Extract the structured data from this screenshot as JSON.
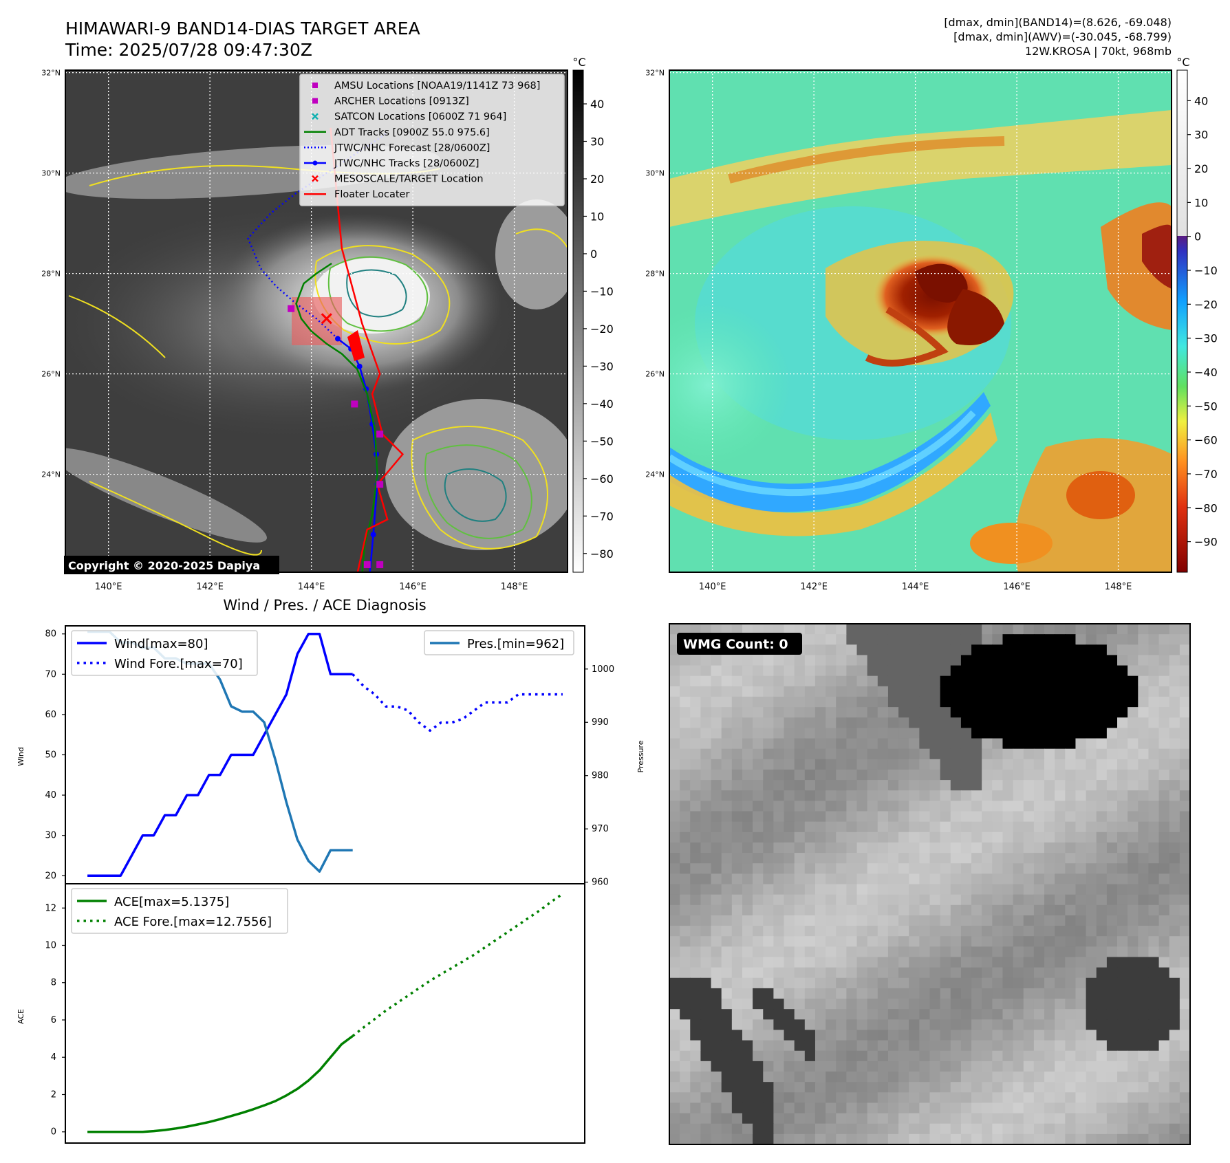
{
  "header": {
    "title_line1": "HIMAWARI-9 BAND14-DIAS TARGET AREA",
    "title_line2": "Time: 2025/07/28 09:47:30Z",
    "info_line1": "[dmax, dmin](BAND14)=(8.626, -69.048)",
    "info_line2": "[dmax, dmin](AWV)=(-30.045, -68.799)",
    "info_line3": "12W.KROSA | 70kt, 968mb"
  },
  "map_axes": {
    "lat_labels": [
      "32°N",
      "30°N",
      "28°N",
      "26°N",
      "24°N"
    ],
    "lat_values": [
      32,
      30,
      28,
      26,
      24
    ],
    "lon_labels": [
      "140°E",
      "142°E",
      "144°E",
      "146°E",
      "148°E"
    ],
    "lon_values": [
      140,
      142,
      144,
      146,
      148
    ],
    "lon_range": [
      139.15,
      149.05
    ],
    "lat_range": [
      22.05,
      32.05
    ]
  },
  "ir_panel": {
    "copyright": "Copyright © 2020-2025 Dapiya",
    "colorbar_unit": "°C",
    "colorbar_ticks": [
      "40",
      "30",
      "20",
      "10",
      "0",
      "−10",
      "−20",
      "−30",
      "−40",
      "−50",
      "−60",
      "−70",
      "−80"
    ],
    "colorbar_values": [
      40,
      30,
      20,
      10,
      0,
      -10,
      -20,
      -30,
      -40,
      -50,
      -60,
      -70,
      -80
    ],
    "colorbar_range": [
      -85,
      49
    ]
  },
  "legend": [
    {
      "label": "AMSU Locations [NOAA19/1141Z 73 968]",
      "marker": "square",
      "color": "#c000c0"
    },
    {
      "label": "ARCHER Locations [0913Z]",
      "marker": "square",
      "color": "#c000c0"
    },
    {
      "label": "SATCON Locations [0600Z 71 964]",
      "marker": "x",
      "color": "#10b0b0"
    },
    {
      "label": "ADT Tracks [0900Z 55.0 975.6]",
      "marker": "line",
      "color": "#008000"
    },
    {
      "label": "JTWC/NHC Forecast [28/0600Z]",
      "marker": "dotted",
      "color": "#0000ff"
    },
    {
      "label": "JTWC/NHC Tracks [28/0600Z]",
      "marker": "line-dot",
      "color": "#0000ff"
    },
    {
      "label": "MESOSCALE/TARGET Location",
      "marker": "x",
      "color": "#ff0000"
    },
    {
      "label": "Floater Locater",
      "marker": "line",
      "color": "#ff0000"
    }
  ],
  "awv_panel": {
    "colorbar_unit": "°C",
    "colorbar_ticks": [
      "40",
      "30",
      "20",
      "10",
      "0",
      "−10",
      "−20",
      "−30",
      "−40",
      "−50",
      "−60",
      "−70",
      "−80",
      "−90"
    ],
    "colorbar_values": [
      40,
      30,
      20,
      10,
      0,
      -10,
      -20,
      -30,
      -40,
      -50,
      -60,
      -70,
      -80,
      -90
    ],
    "colorbar_range": [
      -99,
      49
    ]
  },
  "wmg_panel": {
    "label": "WMG Count: 0"
  },
  "diagnosis": {
    "title": "Wind / Pres. / ACE Diagnosis",
    "wind_ylabel": "Wind",
    "pres_ylabel": "Pressure",
    "ace_ylabel": "ACE",
    "legend_wind": "Wind[max=80]",
    "legend_wind_fore": "Wind Fore.[max=70]",
    "legend_pres": "Pres.[min=962]",
    "legend_ace": "ACE[max=5.1375]",
    "legend_ace_fore": "ACE Fore.[max=12.7556]",
    "wind_ticks": [
      "80",
      "70",
      "60",
      "50",
      "40",
      "30",
      "20"
    ],
    "pres_ticks": [
      "1000",
      "990",
      "980",
      "970",
      "960"
    ],
    "ace_ticks": [
      "12",
      "10",
      "8",
      "6",
      "4",
      "2",
      "0"
    ]
  },
  "colors": {
    "wind": "#0000ff",
    "pressure": "#1f77b4",
    "ace": "#008000",
    "contour_yellow": "#f0e020",
    "contour_green": "#60c040",
    "contour_teal": "#208080"
  },
  "chart_data": [
    {
      "type": "line",
      "title": "Wind / Pres. / ACE Diagnosis",
      "ylabel": "Wind",
      "ylim": [
        18,
        82
      ],
      "xlim": [
        -2,
        45
      ],
      "series": [
        {
          "name": "Wind[max=80]",
          "style": "solid",
          "color": "#0000ff",
          "x": [
            0,
            1,
            2,
            3,
            4,
            5,
            6,
            7,
            8,
            9,
            10,
            11,
            12,
            13,
            14,
            15,
            16,
            17,
            18,
            19,
            20,
            21,
            22,
            23,
            24
          ],
          "y": [
            20,
            20,
            20,
            20,
            25,
            30,
            30,
            35,
            35,
            40,
            40,
            45,
            45,
            50,
            50,
            50,
            55,
            60,
            65,
            75,
            80,
            80,
            70,
            70,
            70
          ]
        },
        {
          "name": "Wind Fore.[max=70]",
          "style": "dotted",
          "color": "#0000ff",
          "x": [
            24,
            25,
            26,
            27,
            28,
            29,
            30,
            31,
            32,
            33,
            34,
            35,
            36,
            37,
            38,
            39,
            40,
            41,
            42,
            43
          ],
          "y": [
            70,
            67,
            65,
            62,
            62,
            61,
            58,
            56,
            58,
            58,
            59,
            61,
            63,
            63,
            63,
            65,
            65,
            65,
            65,
            65
          ]
        },
        {
          "name": "Pres.[min=962]",
          "style": "solid",
          "color": "#1f77b4",
          "axis": "right",
          "ylim": [
            959.7,
            1008.1
          ],
          "x": [
            0,
            1,
            2,
            3,
            4,
            5,
            6,
            7,
            8,
            9,
            10,
            11,
            12,
            13,
            14,
            15,
            16,
            17,
            18,
            19,
            20,
            21,
            22,
            23,
            24
          ],
          "y": [
            1007,
            1007,
            1007,
            1005,
            1005,
            1004,
            1004,
            1002,
            1002,
            1001,
            1001,
            1001,
            998,
            993,
            992,
            992,
            990,
            983,
            975,
            968,
            964,
            962,
            966,
            966,
            966
          ]
        }
      ]
    },
    {
      "type": "line",
      "ylabel": "ACE",
      "ylim": [
        -0.6,
        13.3
      ],
      "xlim": [
        -2,
        45
      ],
      "series": [
        {
          "name": "ACE[max=5.1375]",
          "style": "solid",
          "color": "#008000",
          "x": [
            0,
            1,
            2,
            3,
            4,
            5,
            6,
            7,
            8,
            9,
            10,
            11,
            12,
            13,
            14,
            15,
            16,
            17,
            18,
            19,
            20,
            21,
            22,
            23,
            24
          ],
          "y": [
            0,
            0,
            0,
            0,
            0,
            0,
            0.04,
            0.1,
            0.18,
            0.28,
            0.4,
            0.53,
            0.68,
            0.85,
            1.02,
            1.21,
            1.42,
            1.65,
            1.95,
            2.3,
            2.75,
            3.3,
            4.0,
            4.7,
            5.1375
          ]
        },
        {
          "name": "ACE Fore.[max=12.7556]",
          "style": "dotted",
          "color": "#008000",
          "x": [
            24,
            25,
            26,
            27,
            28,
            29,
            30,
            31,
            32,
            33,
            34,
            35,
            36,
            37,
            38,
            39,
            40,
            41,
            42,
            43
          ],
          "y": [
            5.1375,
            5.6,
            6.05,
            6.5,
            6.9,
            7.3,
            7.7,
            8.1,
            8.45,
            8.8,
            9.15,
            9.5,
            9.9,
            10.3,
            10.7,
            11.1,
            11.5,
            11.9,
            12.35,
            12.7556
          ]
        }
      ]
    },
    {
      "type": "scatter",
      "title": "HIMAWARI-9 BAND14-DIAS TARGET AREA",
      "xlabel": "",
      "ylabel": "",
      "xlim": [
        139.15,
        149.05
      ],
      "ylim": [
        22.05,
        32.05
      ],
      "series": [
        {
          "name": "JTWC/NHC Tracks [28/0600Z]",
          "style": "line-dot",
          "color": "#0000ff",
          "points": [
            [
              145.15,
              22.0
            ],
            [
              145.22,
              22.8
            ],
            [
              145.3,
              23.8
            ],
            [
              145.28,
              24.4
            ],
            [
              145.2,
              25.0
            ],
            [
              145.08,
              25.7
            ],
            [
              144.95,
              26.15
            ],
            [
              144.78,
              26.5
            ],
            [
              144.52,
              26.7
            ]
          ]
        },
        {
          "name": "JTWC/NHC Forecast [28/0600Z]",
          "style": "dotted",
          "color": "#0000ff",
          "points": [
            [
              144.52,
              26.7
            ],
            [
              144.1,
              27.1
            ],
            [
              143.7,
              27.4
            ],
            [
              143.3,
              27.75
            ],
            [
              143.0,
              28.1
            ],
            [
              142.75,
              28.7
            ],
            [
              143.2,
              29.2
            ],
            [
              143.7,
              29.6
            ],
            [
              144.6,
              30.2
            ],
            [
              145.5,
              30.8
            ]
          ]
        },
        {
          "name": "ADT Tracks [0900Z 55.0 975.6]",
          "style": "solid",
          "color": "#008000",
          "points": [
            [
              145.0,
              22.0
            ],
            [
              145.05,
              22.6
            ],
            [
              145.2,
              23.2
            ],
            [
              145.3,
              24.0
            ],
            [
              145.25,
              24.9
            ],
            [
              145.1,
              25.6
            ],
            [
              144.9,
              26.1
            ],
            [
              144.6,
              26.4
            ],
            [
              144.3,
              26.6
            ],
            [
              144.0,
              26.85
            ],
            [
              143.8,
              27.1
            ],
            [
              143.7,
              27.4
            ],
            [
              143.85,
              27.8
            ],
            [
              144.1,
              28.0
            ],
            [
              144.4,
              28.2
            ]
          ]
        },
        {
          "name": "Floater Locater",
          "style": "solid",
          "color": "#ff0000",
          "points": [
            [
              144.38,
              30.9
            ],
            [
              144.6,
              28.5
            ],
            [
              145.0,
              27.0
            ],
            [
              145.35,
              26.0
            ],
            [
              145.2,
              25.6
            ],
            [
              145.4,
              24.8
            ],
            [
              145.8,
              24.4
            ],
            [
              145.3,
              23.8
            ],
            [
              145.5,
              23.1
            ],
            [
              145.1,
              22.9
            ],
            [
              144.9,
              22.0
            ]
          ]
        },
        {
          "name": "AMSU Locations [NOAA19/1141Z 73 968]",
          "style": "square",
          "color": "#c000c0",
          "points": [
            [
              143.6,
              27.3
            ],
            [
              144.85,
              25.4
            ],
            [
              145.35,
              24.8
            ],
            [
              145.35,
              23.8
            ],
            [
              145.1,
              22.2
            ],
            [
              145.35,
              22.2
            ]
          ]
        },
        {
          "name": "MESOSCALE/TARGET Location",
          "style": "x",
          "color": "#ff0000",
          "points": [
            [
              144.3,
              27.1
            ]
          ]
        }
      ]
    }
  ]
}
